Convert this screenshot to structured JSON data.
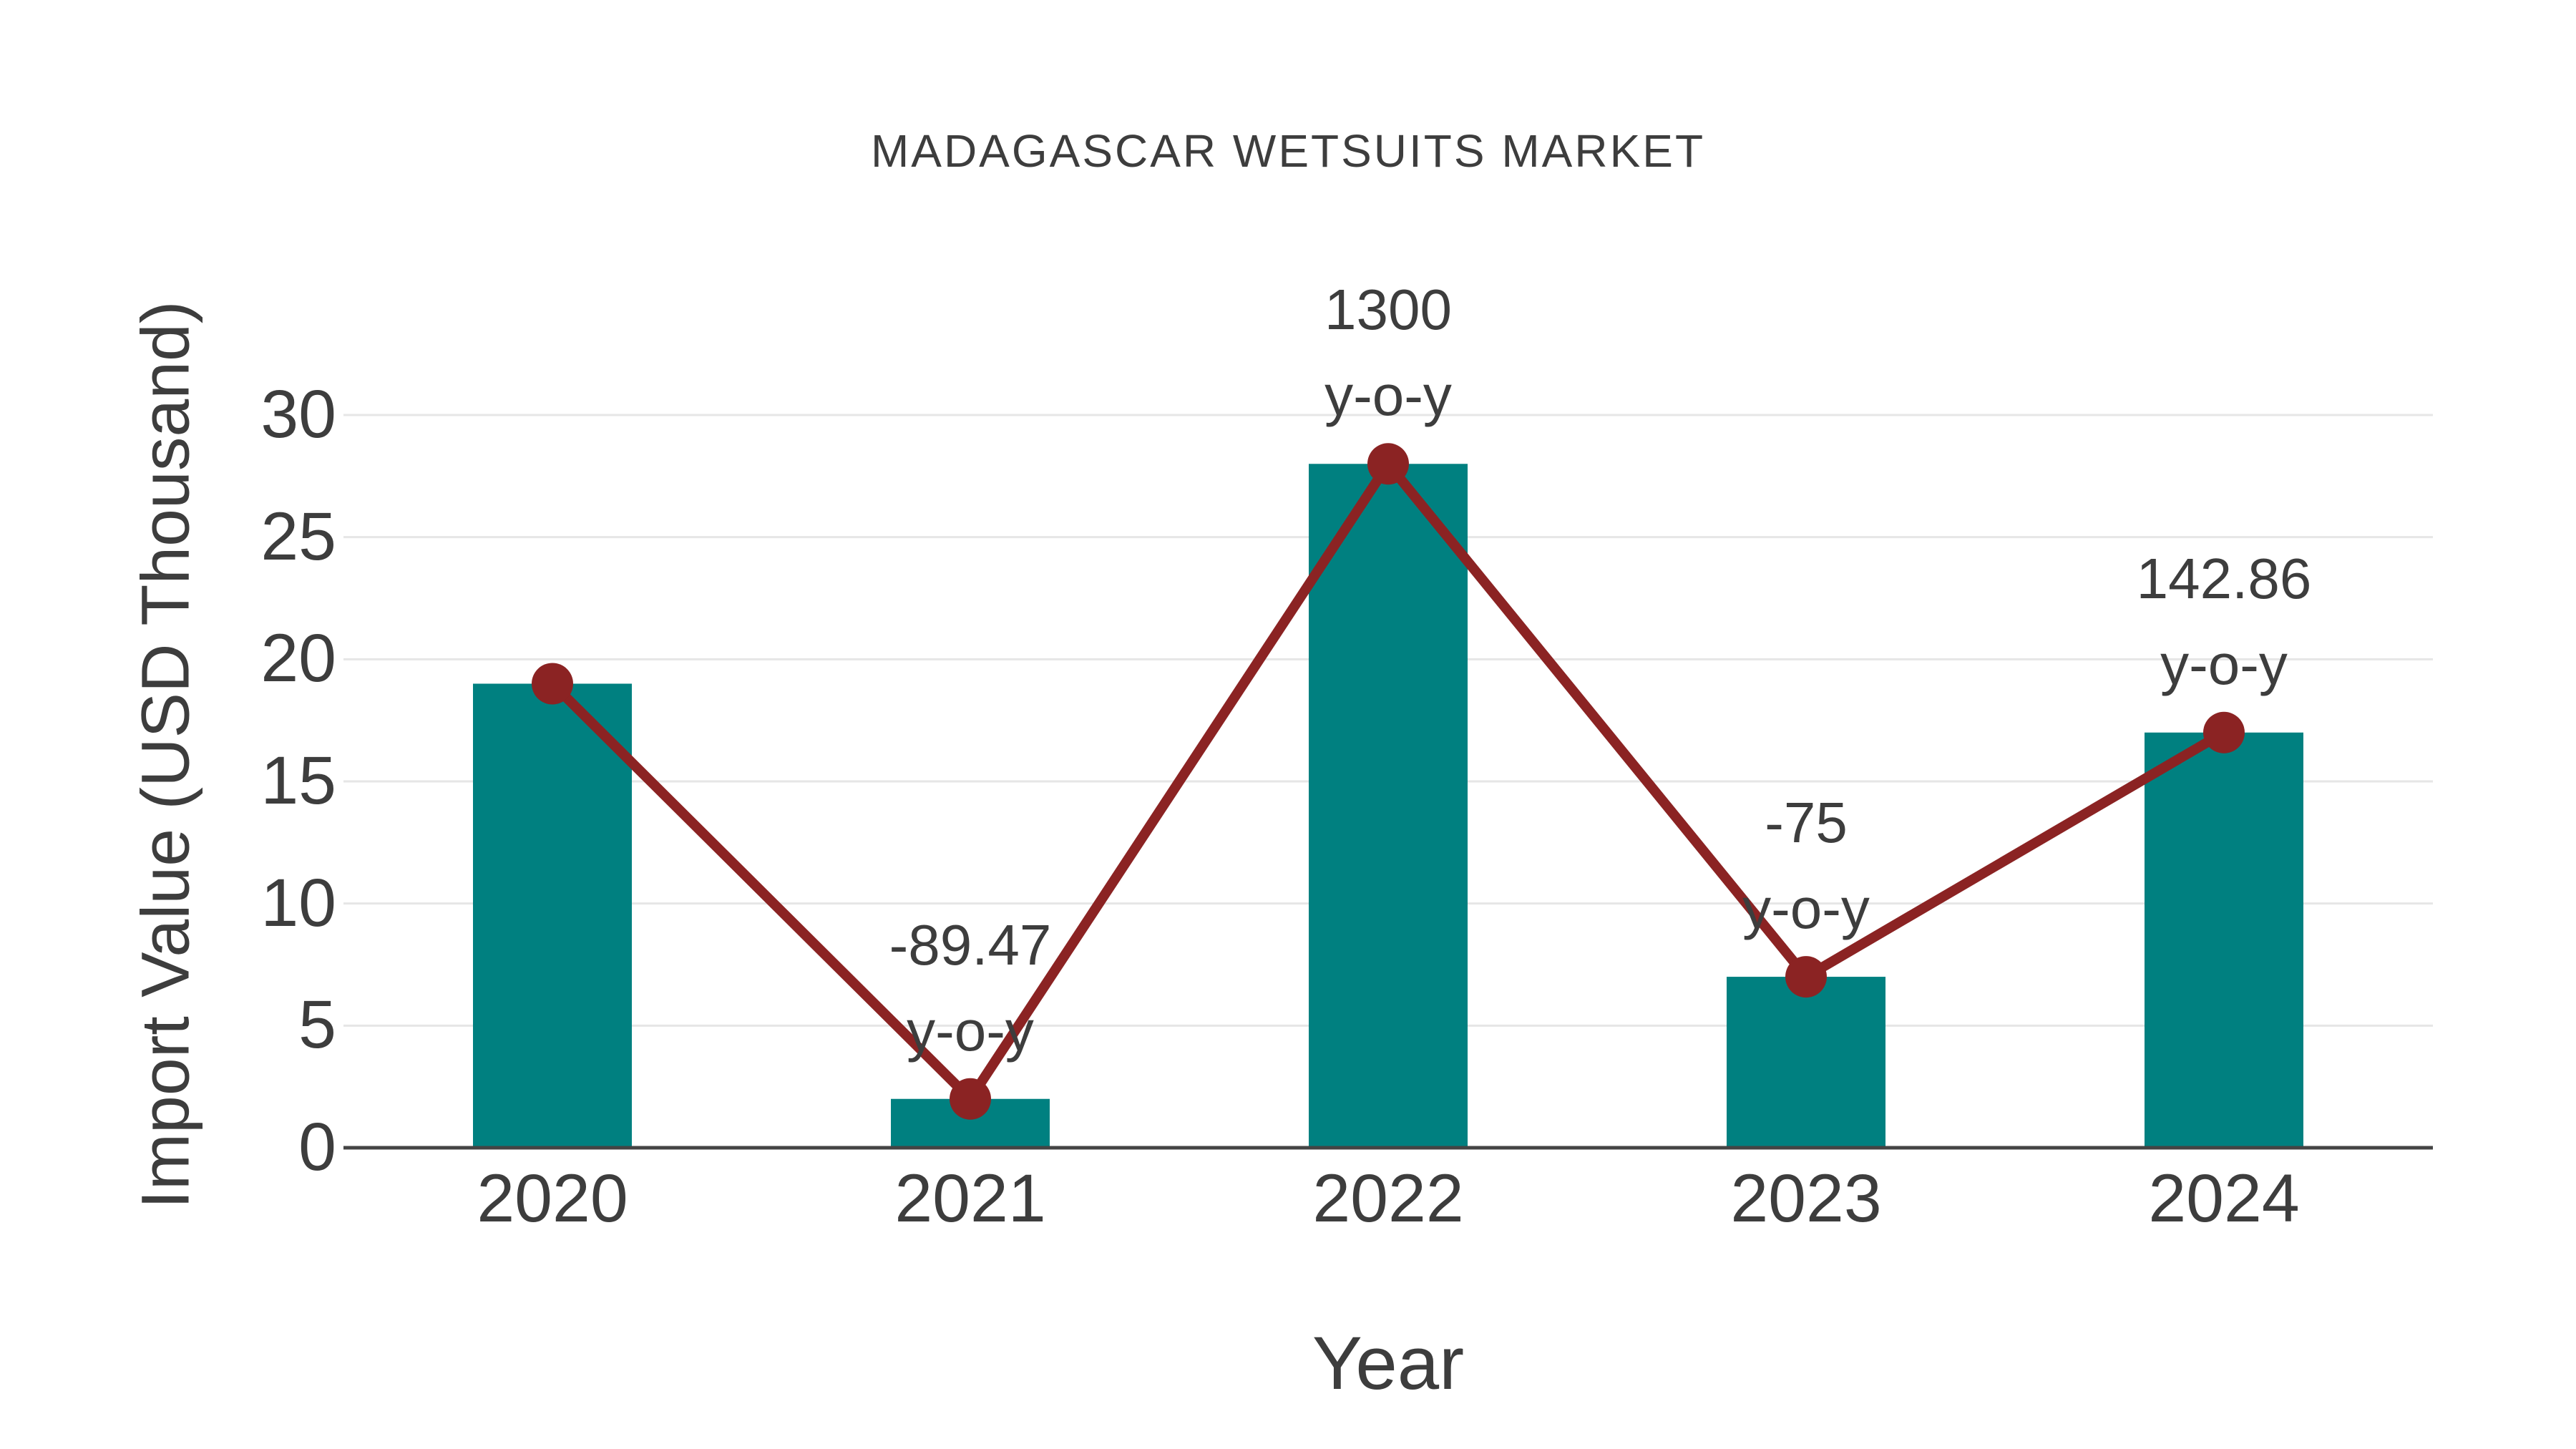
{
  "figure": {
    "background": "#ffffff",
    "text_color": "#3d3d3d"
  },
  "chart_data": {
    "type": "bar",
    "title": "MADAGASCAR WETSUITS MARKET",
    "xlabel": "Year",
    "ylabel": "Import Value (USD Thousand)",
    "categories": [
      "2020",
      "2021",
      "2022",
      "2023",
      "2024"
    ],
    "series": [
      {
        "name": "Import Value (USD Thousand)",
        "type": "bar",
        "color": "#008080",
        "values": [
          19,
          2,
          28,
          7,
          17
        ]
      },
      {
        "name": "y-o-y trend line",
        "type": "line",
        "color": "#8B2323",
        "marker": "circle",
        "values": [
          19,
          2,
          28,
          7,
          17
        ],
        "yoy_percent": [
          null,
          -89.47,
          1300,
          -75,
          142.86
        ]
      }
    ],
    "annotations": [
      {
        "category": "2021",
        "lines": [
          "-89.47",
          "y-o-y"
        ]
      },
      {
        "category": "2022",
        "lines": [
          "1300",
          "y-o-y"
        ]
      },
      {
        "category": "2023",
        "lines": [
          "-75",
          "y-o-y"
        ]
      },
      {
        "category": "2024",
        "lines": [
          "142.86",
          "y-o-y"
        ]
      }
    ],
    "ylim": [
      0,
      30
    ],
    "yticks": [
      0,
      5,
      10,
      15,
      20,
      25,
      30
    ],
    "grid": "horizontal",
    "gridline_color": "#e6e6e6",
    "axis_line_color": "#444444",
    "legend_position": "none"
  }
}
